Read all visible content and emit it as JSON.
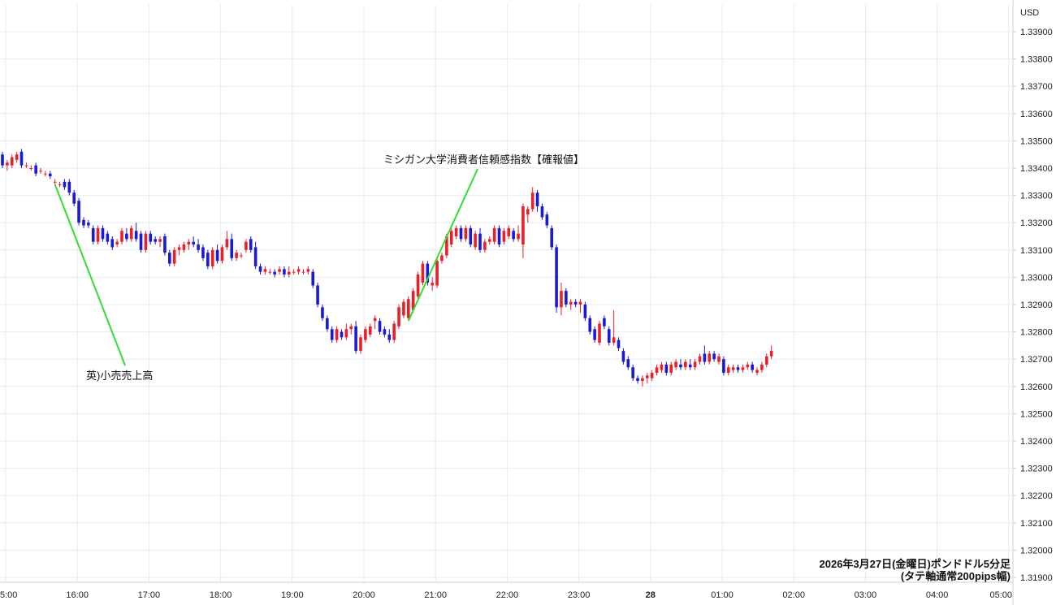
{
  "chart_data": {
    "type": "candlestick",
    "currency_label": "USD",
    "caption_line1": "2026年3月27日(金曜日)ポンドドル5分足",
    "caption_line2": "(タテ軸通常200pips幅)",
    "ylim": [
      1.3188,
      1.3398
    ],
    "y_ticks": [
      "1.33900",
      "1.33800",
      "1.33700",
      "1.33600",
      "1.33500",
      "1.33400",
      "1.33300",
      "1.33200",
      "1.33100",
      "1.33000",
      "1.32900",
      "1.32800",
      "1.32700",
      "1.32600",
      "1.32500",
      "1.32400",
      "1.32300",
      "1.32200",
      "1.32100",
      "1.32000",
      "1.31900"
    ],
    "x_ticks": [
      "5:00",
      "16:00",
      "17:00",
      "18:00",
      "19:00",
      "20:00",
      "21:00",
      "22:00",
      "23:00",
      "28",
      "01:00",
      "02:00",
      "03:00",
      "04:00",
      "05:00"
    ],
    "grid": true,
    "colors": {
      "up": "#e8202a",
      "down": "#1a1ad6",
      "annotation_line": "#33dd33",
      "grid": "#e4ecef"
    },
    "annotations": [
      {
        "text": "英)小売売上高",
        "candle_index": 11
      },
      {
        "text": "ミシガン大学消費者信頼感指数【確報値】",
        "candle_index": 85
      }
    ],
    "candles": [
      [
        1.3345,
        1.3346,
        1.334,
        1.3341
      ],
      [
        1.3341,
        1.3343,
        1.3339,
        1.3342
      ],
      [
        1.3341,
        1.3345,
        1.334,
        1.3344
      ],
      [
        1.3343,
        1.3346,
        1.3342,
        1.3345
      ],
      [
        1.3346,
        1.3347,
        1.334,
        1.3341
      ],
      [
        1.3341,
        1.3342,
        1.334,
        1.3341
      ],
      [
        1.334,
        1.3341,
        1.3339,
        1.334
      ],
      [
        1.3341,
        1.3342,
        1.3337,
        1.3338
      ],
      [
        1.3339,
        1.334,
        1.3338,
        1.3339
      ],
      [
        1.3338,
        1.3339,
        1.3337,
        1.3338
      ],
      [
        1.3338,
        1.3339,
        1.3336,
        1.3337
      ],
      [
        1.3335,
        1.3336,
        1.3334,
        1.3335
      ],
      [
        1.3334,
        1.3335,
        1.3333,
        1.3334
      ],
      [
        1.3335,
        1.3336,
        1.3332,
        1.3333
      ],
      [
        1.3335,
        1.3336,
        1.333,
        1.3331
      ],
      [
        1.3331,
        1.3332,
        1.3326,
        1.3327
      ],
      [
        1.3328,
        1.3329,
        1.3319,
        1.332
      ],
      [
        1.3321,
        1.3322,
        1.3318,
        1.3319
      ],
      [
        1.332,
        1.3321,
        1.3318,
        1.3319
      ],
      [
        1.3318,
        1.3319,
        1.3312,
        1.3313
      ],
      [
        1.3313,
        1.3319,
        1.3312,
        1.3318
      ],
      [
        1.3318,
        1.3319,
        1.3313,
        1.3314
      ],
      [
        1.3316,
        1.3317,
        1.3312,
        1.3313
      ],
      [
        1.3314,
        1.3315,
        1.331,
        1.3311
      ],
      [
        1.3312,
        1.3314,
        1.3311,
        1.3313
      ],
      [
        1.3313,
        1.3318,
        1.3312,
        1.3317
      ],
      [
        1.3316,
        1.3318,
        1.3313,
        1.3314
      ],
      [
        1.3314,
        1.3319,
        1.3313,
        1.3318
      ],
      [
        1.3317,
        1.332,
        1.3313,
        1.3314
      ],
      [
        1.3316,
        1.3317,
        1.3309,
        1.331
      ],
      [
        1.331,
        1.3317,
        1.3309,
        1.3316
      ],
      [
        1.3316,
        1.3317,
        1.3312,
        1.3313
      ],
      [
        1.3314,
        1.3315,
        1.3312,
        1.3313
      ],
      [
        1.3313,
        1.3315,
        1.3311,
        1.3314
      ],
      [
        1.3315,
        1.3316,
        1.3308,
        1.3309
      ],
      [
        1.3309,
        1.331,
        1.3304,
        1.3305
      ],
      [
        1.3305,
        1.3311,
        1.3304,
        1.331
      ],
      [
        1.331,
        1.3312,
        1.3308,
        1.3311
      ],
      [
        1.331,
        1.3313,
        1.3309,
        1.3312
      ],
      [
        1.3312,
        1.3314,
        1.331,
        1.3313
      ],
      [
        1.3313,
        1.3315,
        1.3311,
        1.3312
      ],
      [
        1.3312,
        1.3314,
        1.3309,
        1.331
      ],
      [
        1.3311,
        1.3312,
        1.3306,
        1.3307
      ],
      [
        1.3309,
        1.331,
        1.3303,
        1.3304
      ],
      [
        1.3304,
        1.3311,
        1.3303,
        1.331
      ],
      [
        1.331,
        1.3312,
        1.3305,
        1.3306
      ],
      [
        1.3306,
        1.3312,
        1.3305,
        1.3311
      ],
      [
        1.3311,
        1.3317,
        1.331,
        1.3314
      ],
      [
        1.3314,
        1.3316,
        1.3306,
        1.3307
      ],
      [
        1.3307,
        1.331,
        1.3306,
        1.3309
      ],
      [
        1.3308,
        1.3309,
        1.3307,
        1.3308
      ],
      [
        1.331,
        1.3314,
        1.3309,
        1.3313
      ],
      [
        1.3314,
        1.3315,
        1.3309,
        1.331
      ],
      [
        1.3311,
        1.3313,
        1.3303,
        1.3304
      ],
      [
        1.3304,
        1.3305,
        1.3301,
        1.3302
      ],
      [
        1.3302,
        1.3304,
        1.3301,
        1.3303
      ],
      [
        1.3302,
        1.3303,
        1.3301,
        1.3302
      ],
      [
        1.3302,
        1.3303,
        1.33,
        1.3301
      ],
      [
        1.3302,
        1.3304,
        1.3301,
        1.3303
      ],
      [
        1.3303,
        1.3304,
        1.33,
        1.3301
      ],
      [
        1.3301,
        1.3304,
        1.33,
        1.3302
      ],
      [
        1.3302,
        1.3303,
        1.3301,
        1.3302
      ],
      [
        1.3302,
        1.3304,
        1.3301,
        1.3303
      ],
      [
        1.3302,
        1.3303,
        1.3301,
        1.3302
      ],
      [
        1.3302,
        1.3304,
        1.3301,
        1.3303
      ],
      [
        1.3302,
        1.3303,
        1.3296,
        1.3297
      ],
      [
        1.3297,
        1.3298,
        1.3289,
        1.329
      ],
      [
        1.3289,
        1.329,
        1.3284,
        1.3285
      ],
      [
        1.3285,
        1.3286,
        1.328,
        1.3281
      ],
      [
        1.3281,
        1.3282,
        1.3276,
        1.3277
      ],
      [
        1.3277,
        1.3282,
        1.3276,
        1.3281
      ],
      [
        1.328,
        1.3281,
        1.3277,
        1.3278
      ],
      [
        1.3278,
        1.3283,
        1.3277,
        1.3281
      ],
      [
        1.3281,
        1.3283,
        1.3279,
        1.3282
      ],
      [
        1.3282,
        1.3284,
        1.3272,
        1.3273
      ],
      [
        1.3273,
        1.3279,
        1.3272,
        1.3278
      ],
      [
        1.3277,
        1.3282,
        1.3276,
        1.3281
      ],
      [
        1.3279,
        1.3283,
        1.3278,
        1.3282
      ],
      [
        1.3284,
        1.3286,
        1.3281,
        1.3285
      ],
      [
        1.3284,
        1.3285,
        1.3279,
        1.328
      ],
      [
        1.3281,
        1.3282,
        1.3278,
        1.3279
      ],
      [
        1.3279,
        1.3281,
        1.3276,
        1.3277
      ],
      [
        1.3277,
        1.3284,
        1.3276,
        1.3283
      ],
      [
        1.3282,
        1.329,
        1.3281,
        1.3289
      ],
      [
        1.3286,
        1.3292,
        1.3285,
        1.3291
      ],
      [
        1.3285,
        1.3293,
        1.3284,
        1.3292
      ],
      [
        1.3288,
        1.3296,
        1.3287,
        1.3295
      ],
      [
        1.3293,
        1.3302,
        1.3292,
        1.3301
      ],
      [
        1.3298,
        1.3306,
        1.3297,
        1.3305
      ],
      [
        1.3305,
        1.3306,
        1.3297,
        1.3298
      ],
      [
        1.3297,
        1.33,
        1.3295,
        1.3298
      ],
      [
        1.3297,
        1.3307,
        1.3296,
        1.3306
      ],
      [
        1.3306,
        1.3309,
        1.3305,
        1.3308
      ],
      [
        1.3308,
        1.3316,
        1.3307,
        1.3315
      ],
      [
        1.3312,
        1.3318,
        1.3311,
        1.3317
      ],
      [
        1.3315,
        1.3319,
        1.3314,
        1.3318
      ],
      [
        1.3318,
        1.3319,
        1.3313,
        1.3314
      ],
      [
        1.3314,
        1.3319,
        1.3313,
        1.3318
      ],
      [
        1.3318,
        1.3319,
        1.3311,
        1.3312
      ],
      [
        1.3311,
        1.3317,
        1.331,
        1.3316
      ],
      [
        1.3316,
        1.3318,
        1.3309,
        1.331
      ],
      [
        1.331,
        1.3314,
        1.3309,
        1.3313
      ],
      [
        1.3313,
        1.3315,
        1.3312,
        1.3314
      ],
      [
        1.3313,
        1.3319,
        1.3312,
        1.3318
      ],
      [
        1.3318,
        1.3319,
        1.3311,
        1.3312
      ],
      [
        1.3313,
        1.3318,
        1.3312,
        1.3317
      ],
      [
        1.3315,
        1.3319,
        1.3314,
        1.3318
      ],
      [
        1.3317,
        1.3318,
        1.3313,
        1.3314
      ],
      [
        1.3314,
        1.3319,
        1.3313,
        1.3316
      ],
      [
        1.3312,
        1.3327,
        1.3307,
        1.3326
      ],
      [
        1.3323,
        1.3326,
        1.332,
        1.3325
      ],
      [
        1.3325,
        1.3333,
        1.3324,
        1.3331
      ],
      [
        1.3331,
        1.3332,
        1.3324,
        1.3326
      ],
      [
        1.3326,
        1.3327,
        1.3321,
        1.3322
      ],
      [
        1.3323,
        1.3324,
        1.3318,
        1.3319
      ],
      [
        1.3318,
        1.3319,
        1.331,
        1.3311
      ],
      [
        1.3311,
        1.3312,
        1.3287,
        1.3289
      ],
      [
        1.3289,
        1.3298,
        1.3286,
        1.3295
      ],
      [
        1.3295,
        1.3296,
        1.3289,
        1.329
      ],
      [
        1.329,
        1.3292,
        1.3288,
        1.3291
      ],
      [
        1.3291,
        1.3292,
        1.3289,
        1.329
      ],
      [
        1.329,
        1.3292,
        1.3287,
        1.3291
      ],
      [
        1.329,
        1.3291,
        1.3284,
        1.3285
      ],
      [
        1.3285,
        1.3286,
        1.3279,
        1.328
      ],
      [
        1.3281,
        1.3282,
        1.3276,
        1.3277
      ],
      [
        1.3276,
        1.3284,
        1.3275,
        1.3283
      ],
      [
        1.3285,
        1.3286,
        1.3281,
        1.3282
      ],
      [
        1.3281,
        1.3282,
        1.3275,
        1.3276
      ],
      [
        1.3276,
        1.3288,
        1.3275,
        1.3278
      ],
      [
        1.3277,
        1.3278,
        1.3273,
        1.3274
      ],
      [
        1.3273,
        1.3274,
        1.3268,
        1.3269
      ],
      [
        1.327,
        1.3271,
        1.3266,
        1.3267
      ],
      [
        1.3267,
        1.3268,
        1.3262,
        1.3263
      ],
      [
        1.3263,
        1.3264,
        1.3261,
        1.3262
      ],
      [
        1.3262,
        1.3264,
        1.326,
        1.3263
      ],
      [
        1.3263,
        1.3265,
        1.3261,
        1.3264
      ],
      [
        1.3263,
        1.3266,
        1.3262,
        1.3265
      ],
      [
        1.3265,
        1.3268,
        1.3264,
        1.3267
      ],
      [
        1.3266,
        1.3269,
        1.3265,
        1.3268
      ],
      [
        1.3268,
        1.3269,
        1.3264,
        1.3265
      ],
      [
        1.3265,
        1.3269,
        1.3264,
        1.3268
      ],
      [
        1.3267,
        1.327,
        1.3266,
        1.3269
      ],
      [
        1.3268,
        1.327,
        1.3266,
        1.3267
      ],
      [
        1.3267,
        1.327,
        1.3266,
        1.3269
      ],
      [
        1.3268,
        1.327,
        1.3266,
        1.3267
      ],
      [
        1.3267,
        1.327,
        1.3266,
        1.3269
      ],
      [
        1.3269,
        1.3272,
        1.3268,
        1.3271
      ],
      [
        1.3272,
        1.3275,
        1.3268,
        1.3269
      ],
      [
        1.3269,
        1.3273,
        1.3268,
        1.3272
      ],
      [
        1.3272,
        1.3273,
        1.3269,
        1.327
      ],
      [
        1.3269,
        1.3272,
        1.3268,
        1.3271
      ],
      [
        1.327,
        1.3271,
        1.3264,
        1.3265
      ],
      [
        1.3265,
        1.3268,
        1.3264,
        1.3267
      ],
      [
        1.3266,
        1.3268,
        1.3265,
        1.3267
      ],
      [
        1.3267,
        1.3268,
        1.3265,
        1.3266
      ],
      [
        1.3266,
        1.3268,
        1.3265,
        1.3267
      ],
      [
        1.3267,
        1.3269,
        1.3266,
        1.3268
      ],
      [
        1.3268,
        1.3269,
        1.3265,
        1.3266
      ],
      [
        1.3265,
        1.3267,
        1.3264,
        1.3266
      ],
      [
        1.3266,
        1.3269,
        1.3265,
        1.3268
      ],
      [
        1.3268,
        1.3272,
        1.3267,
        1.3271
      ],
      [
        1.3271,
        1.3275,
        1.327,
        1.3273
      ]
    ]
  }
}
